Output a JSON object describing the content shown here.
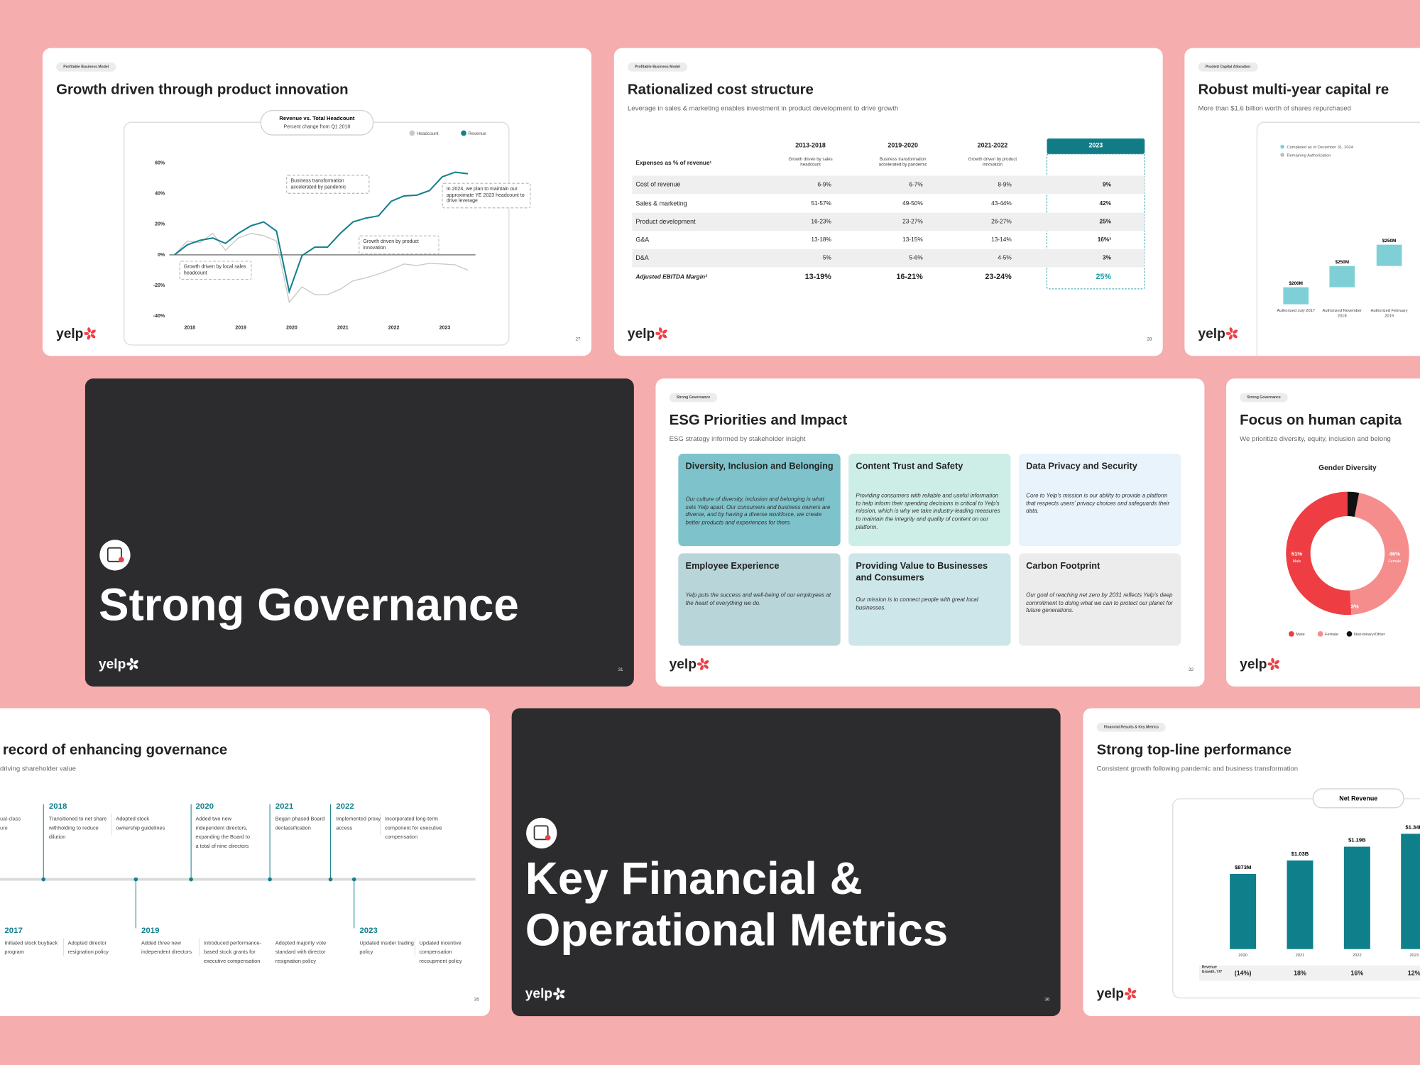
{
  "brand": "yelp",
  "slides": [
    {
      "tag": "Profitable Business Model",
      "title": "Growth driven through product innovation",
      "page": "27",
      "chart": {
        "type": "line",
        "title": "Revenue vs. Total Headcount",
        "subtitle": "Percent change from Q1 2018",
        "x": [
          2017.7,
          2017.95,
          2018.2,
          2018.45,
          2018.7,
          2018.95,
          2019.2,
          2019.45,
          2019.7,
          2019.95,
          2020.2,
          2020.45,
          2020.7,
          2020.95,
          2021.2,
          2021.45,
          2021.7,
          2021.95,
          2022.2,
          2022.45,
          2022.7,
          2022.95,
          2023.2,
          2023.45
        ],
        "series": [
          {
            "name": "Headcount",
            "color": "#c9c9c9",
            "values": [
              0,
              9,
              8,
              14,
              3,
              11,
              14,
              12.5,
              9,
              -31,
              -21,
              -26,
              -26,
              -22.5,
              -17,
              -15,
              -12.5,
              -9.5,
              -6,
              -7,
              -5.5,
              -6,
              -6.5,
              -10
            ]
          },
          {
            "name": "Revenue",
            "color": "#13808c",
            "values": [
              0,
              6.5,
              9.5,
              11,
              7.5,
              14,
              19,
              21.5,
              15.5,
              -24,
              -0.5,
              5,
              5,
              14,
              21.5,
              24,
              25.5,
              35,
              38.5,
              39,
              42,
              51,
              54,
              53
            ]
          }
        ],
        "xlim": [
          2017.6,
          2023.6
        ],
        "xticks": [
          2018,
          2019,
          2020,
          2021,
          2022,
          2023
        ],
        "ylim": [
          -40,
          60
        ],
        "yticks": [
          {
            "value": -40,
            "label": "-40%"
          },
          {
            "value": -20,
            "label": "-20%"
          },
          {
            "value": 0,
            "label": "0%"
          },
          {
            "value": 20,
            "label": "20%"
          },
          {
            "value": 40,
            "label": "40%"
          },
          {
            "value": 60,
            "label": "60%"
          }
        ],
        "annotations": [
          "Business transformation accelerated by pandemic",
          "In 2024, we plan to maintain our approximate YE 2023 headcount to drive leverage",
          "Growth driven by product innovation",
          "Growth driven by local sales headcount"
        ]
      }
    },
    {
      "tag": "Profitable Business Model",
      "title": "Rationalized cost structure",
      "subtitle": "Leverage in sales & marketing enables investment in product development to drive growth",
      "page": "28",
      "table": {
        "columns": [
          "2013-2018",
          "2019-2020",
          "2021-2022",
          "2023"
        ],
        "column_notes": [
          "Growth driven by sales headcount",
          "Business transformation accelerated by pandemic",
          "Growth driven by product innovation"
        ],
        "row_header": "Expenses as % of revenue¹",
        "rows": [
          [
            "Cost of revenue",
            "6-9%",
            "6-7%",
            "8-9%",
            "9%"
          ],
          [
            "Sales & marketing",
            "51-57%",
            "49-50%",
            "43-44%",
            "42%"
          ],
          [
            "Product development",
            "16-23%",
            "23-27%",
            "26-27%",
            "25%"
          ],
          [
            "G&A",
            "13-18%",
            "13-15%",
            "13-14%",
            "16%³"
          ],
          [
            "D&A",
            "5%",
            "5-6%",
            "4-5%",
            "3%"
          ],
          [
            "Adjusted EBITDA Margin²",
            "13-19%",
            "16-21%",
            "23-24%",
            "25%"
          ]
        ]
      }
    },
    {
      "tag": "Prudent Capital Allocation",
      "title": "Robust multi-year capital re",
      "subtitle": "More than $1.6 billion worth of shares repurchased",
      "chart": {
        "type": "waterfall",
        "legend": [
          {
            "name": "Completed as of December 31, 2024",
            "color": "#7fd0d6"
          },
          {
            "name": "Remaining Authorization",
            "color": "#bdbdbd"
          }
        ],
        "categories": [
          "Authorized July 2017",
          "Authorized November 2018",
          "Authorized February 2019"
        ],
        "values": [
          200,
          250,
          250
        ],
        "value_labels": [
          "$200M",
          "$250M",
          "$250M"
        ],
        "color": "#7fd0d6"
      }
    },
    {
      "theme": "dark",
      "title": "Strong Governance",
      "page": "31"
    },
    {
      "tag": "Strong Governance",
      "title": "ESG Priorities and Impact",
      "subtitle": "ESG strategy informed by stakeholder insight",
      "page": "32",
      "cards": [
        {
          "title": "Diversity, Inclusion and Belonging",
          "text": "Our culture of diversity, inclusion and belonging is what sets Yelp apart. Our consumers and business owners are diverse, and by having a diverse workforce, we create better products and experiences for them."
        },
        {
          "title": "Content Trust and Safety",
          "text": "Providing consumers with reliable and useful information to help inform their spending decisions is critical to Yelp's mission, which is why we take industry-leading measures to maintain the integrity and quality of content on our platform."
        },
        {
          "title": "Data Privacy and Security",
          "text": "Core to Yelp's mission is our ability to provide a platform that respects users' privacy choices and safeguards their data."
        },
        {
          "title": "Employee Experience",
          "text": "Yelp puts the success and well-being of our employees at the heart of everything we do."
        },
        {
          "title": "Providing Value to Businesses and Consumers",
          "text": "Our mission is to connect people with great local businesses."
        },
        {
          "title": "Carbon Footprint",
          "text": "Our goal of reaching net zero by 2031 reflects Yelp's deep commitment to doing what we can to protect our planet for future generations."
        }
      ]
    },
    {
      "tag": "Strong Governance",
      "title": "Focus on human capita",
      "subtitle": "We prioritize diversity, equity, inclusion and belong",
      "chart": {
        "type": "donut",
        "title": "Gender Diversity",
        "categories": [
          "Male",
          "Female",
          "Non-binary/Other"
        ],
        "values": [
          51,
          46,
          3
        ],
        "value_labels": [
          "51%",
          "46%",
          "3%"
        ],
        "colors": [
          "#ef3e43",
          "#f58d8c",
          "#111111"
        ]
      }
    },
    {
      "title": "record of enhancing governance",
      "subtitle": "driving shareholder value",
      "page": "35",
      "fragments": [
        "ual-class",
        "ure"
      ],
      "timeline": [
        {
          "year": "2017",
          "texts": [
            "Initiated stock buyback program",
            "Adopted director resignation policy"
          ]
        },
        {
          "year": "2018",
          "texts": [
            "Transitioned to net share withholding to reduce dilution",
            "Adopted stock ownership guidelines"
          ]
        },
        {
          "year": "2019",
          "texts": [
            "Added three new independent directors",
            "Introduced performance- based stock grants for executive compensation"
          ]
        },
        {
          "year": "2020",
          "texts": [
            "Added two new independent directors, expanding the Board to a total of nine directors"
          ]
        },
        {
          "year": "2021",
          "texts": [
            "Began phased Board declassification",
            "Adopted majority vote standard with director resignation policy"
          ]
        },
        {
          "year": "2022",
          "texts": [
            "Implemented proxy access",
            "Incorporated long-term component for executive compensation"
          ]
        },
        {
          "year": "2023",
          "texts": [
            "Updated insider trading policy",
            "Updated incentive compensation recoupment policy"
          ]
        }
      ]
    },
    {
      "theme": "dark",
      "title": "Key Financial & Operational Metrics",
      "page": "36"
    },
    {
      "tag": "Financial Results & Key Metrics",
      "title": "Strong top-line performance",
      "subtitle": "Consistent growth following pandemic and business transformation",
      "chart": {
        "type": "bar",
        "title": "Net Revenue",
        "categories": [
          "2020",
          "2021",
          "2022",
          "2023"
        ],
        "values": [
          873,
          1030,
          1190,
          1340
        ],
        "value_labels": [
          "$873M",
          "$1.03B",
          "$1.19B",
          "$1.34B"
        ],
        "color": "#0e7f8b",
        "growth": {
          "label": "Revenue Growth, Y/Y",
          "values": [
            -14,
            18,
            16,
            12
          ],
          "value_labels": [
            "(14%)",
            "18%",
            "16%",
            "12%"
          ]
        }
      }
    }
  ]
}
